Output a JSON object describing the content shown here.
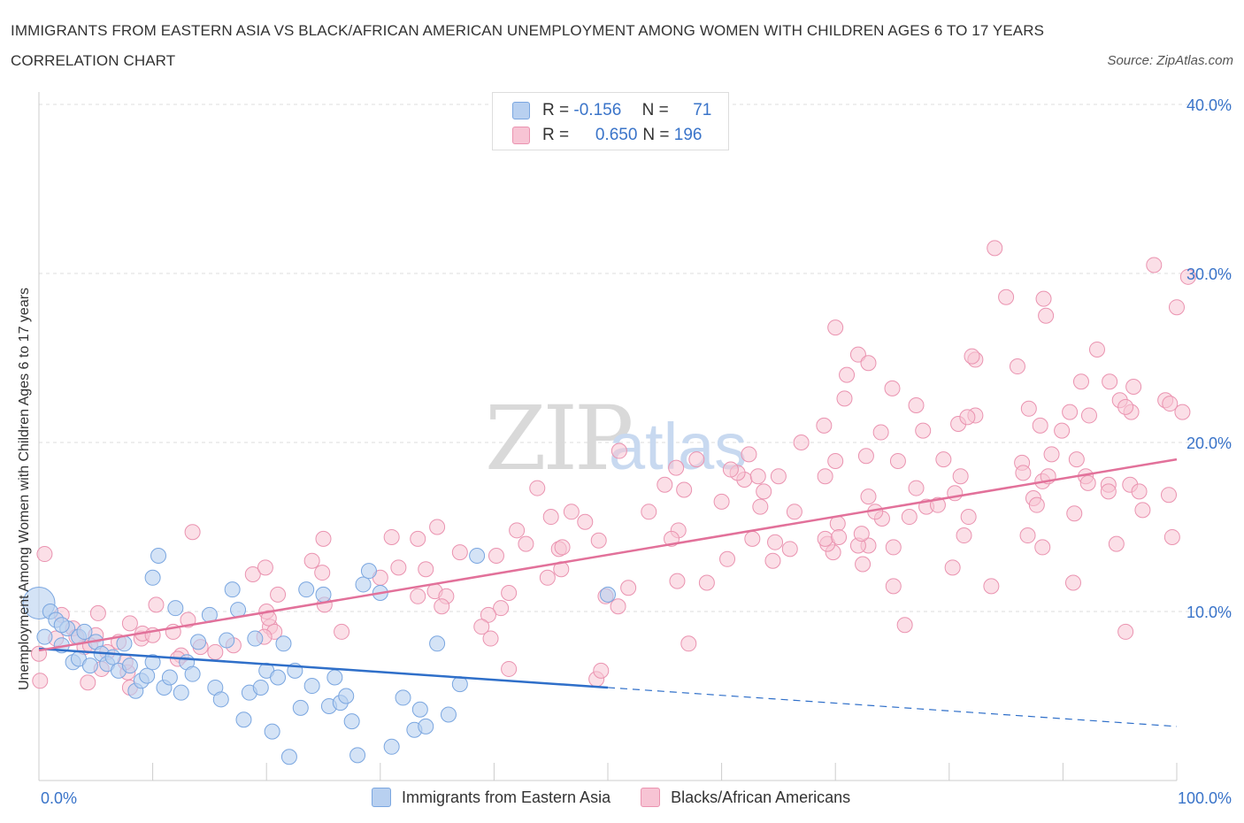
{
  "title": "IMMIGRANTS FROM EASTERN ASIA VS BLACK/AFRICAN AMERICAN UNEMPLOYMENT AMONG WOMEN WITH CHILDREN AGES 6 TO 17 YEARS CORRELATION CHART",
  "source": "Source: ZipAtlas.com",
  "watermark": {
    "zip": "ZIP",
    "atlas": "atlas"
  },
  "legend_top": {
    "rows": [
      {
        "r_label": "R =",
        "r_value": "-0.156",
        "n_label": "N =",
        "n_value": "71"
      },
      {
        "r_label": "R =",
        "r_value": "0.650",
        "n_label": "N =",
        "n_value": "196"
      }
    ]
  },
  "colors": {
    "blue_fill": "#b8d0f0",
    "blue_stroke": "#7aa6e0",
    "blue_line": "#2f6fc9",
    "pink_fill": "#f7c4d4",
    "pink_stroke": "#ea93b0",
    "pink_line": "#e2719a",
    "grid": "#dddddd",
    "axis_text": "#3a74c9"
  },
  "chart_data": {
    "type": "scatter",
    "title": "IMMIGRANTS FROM EASTERN ASIA VS BLACK/AFRICAN AMERICAN UNEMPLOYMENT AMONG WOMEN WITH CHILDREN AGES 6 TO 17 YEARS CORRELATION CHART",
    "xlabel": "",
    "ylabel": "Unemployment Among Women with Children Ages 6 to 17 years",
    "xlim": [
      0,
      100
    ],
    "ylim": [
      0,
      40
    ],
    "x_tick_labels": [
      "0.0%",
      "100.0%"
    ],
    "y_tick_labels": [
      "10.0%",
      "20.0%",
      "30.0%",
      "40.0%"
    ],
    "y_ticks": [
      10,
      20,
      30,
      40
    ],
    "grid": true,
    "legend_position": "bottom",
    "series": [
      {
        "name": "Immigrants from Eastern Asia",
        "color": "#b8d0f0",
        "stats": {
          "R": -0.156,
          "N": 71
        },
        "trend": {
          "x0": 0,
          "y0": 7.8,
          "x1": 50,
          "y1": 5.5,
          "dash_to_x": 100,
          "dash_to_y": 3.2
        },
        "points": [
          [
            0,
            10.5
          ],
          [
            0.5,
            8.5
          ],
          [
            1,
            10
          ],
          [
            1.5,
            9.5
          ],
          [
            2,
            8
          ],
          [
            2.5,
            9
          ],
          [
            3,
            7
          ],
          [
            3.5,
            8.5
          ],
          [
            3.5,
            7.2
          ],
          [
            4,
            8.8
          ],
          [
            4.5,
            6.8
          ],
          [
            5,
            8.2
          ],
          [
            5.5,
            7.5
          ],
          [
            6,
            6.9
          ],
          [
            6.5,
            7.3
          ],
          [
            7,
            6.5
          ],
          [
            7.5,
            8.1
          ],
          [
            8,
            6.8
          ],
          [
            8.5,
            5.3
          ],
          [
            9,
            5.9
          ],
          [
            9.5,
            6.2
          ],
          [
            10,
            12
          ],
          [
            10,
            7
          ],
          [
            10.5,
            13.3
          ],
          [
            11,
            5.5
          ],
          [
            11.5,
            6.1
          ],
          [
            12,
            10.2
          ],
          [
            12.5,
            5.2
          ],
          [
            13,
            7
          ],
          [
            13.5,
            6.3
          ],
          [
            14,
            8.2
          ],
          [
            15,
            9.8
          ],
          [
            15.5,
            5.5
          ],
          [
            16,
            4.8
          ],
          [
            16.5,
            8.3
          ],
          [
            17,
            11.3
          ],
          [
            17.5,
            10.1
          ],
          [
            18,
            3.6
          ],
          [
            18.5,
            5.2
          ],
          [
            19,
            8.4
          ],
          [
            19.5,
            5.5
          ],
          [
            20,
            6.5
          ],
          [
            20.5,
            2.9
          ],
          [
            21,
            6.1
          ],
          [
            21.5,
            8.1
          ],
          [
            22,
            1.4
          ],
          [
            22.5,
            6.5
          ],
          [
            23,
            4.3
          ],
          [
            23.5,
            11.3
          ],
          [
            24,
            5.6
          ],
          [
            25,
            11
          ],
          [
            25.5,
            4.4
          ],
          [
            26,
            6.1
          ],
          [
            26.5,
            4.6
          ],
          [
            27,
            5
          ],
          [
            27.5,
            3.5
          ],
          [
            28,
            1.5
          ],
          [
            28.5,
            11.6
          ],
          [
            29,
            12.4
          ],
          [
            30,
            11.1
          ],
          [
            31,
            2
          ],
          [
            32,
            4.9
          ],
          [
            33,
            3
          ],
          [
            33.5,
            4.2
          ],
          [
            34,
            3.2
          ],
          [
            35,
            8.1
          ],
          [
            36,
            3.9
          ],
          [
            37,
            5.7
          ],
          [
            38.5,
            13.3
          ],
          [
            50,
            11
          ],
          [
            2,
            9.2
          ]
        ]
      },
      {
        "name": "Blacks/African Americans",
        "color": "#f7c4d4",
        "stats": {
          "R": 0.65,
          "N": 196
        },
        "trend": {
          "x0": 0,
          "y0": 7.7,
          "x1": 100,
          "y1": 19
        }
      }
    ]
  }
}
